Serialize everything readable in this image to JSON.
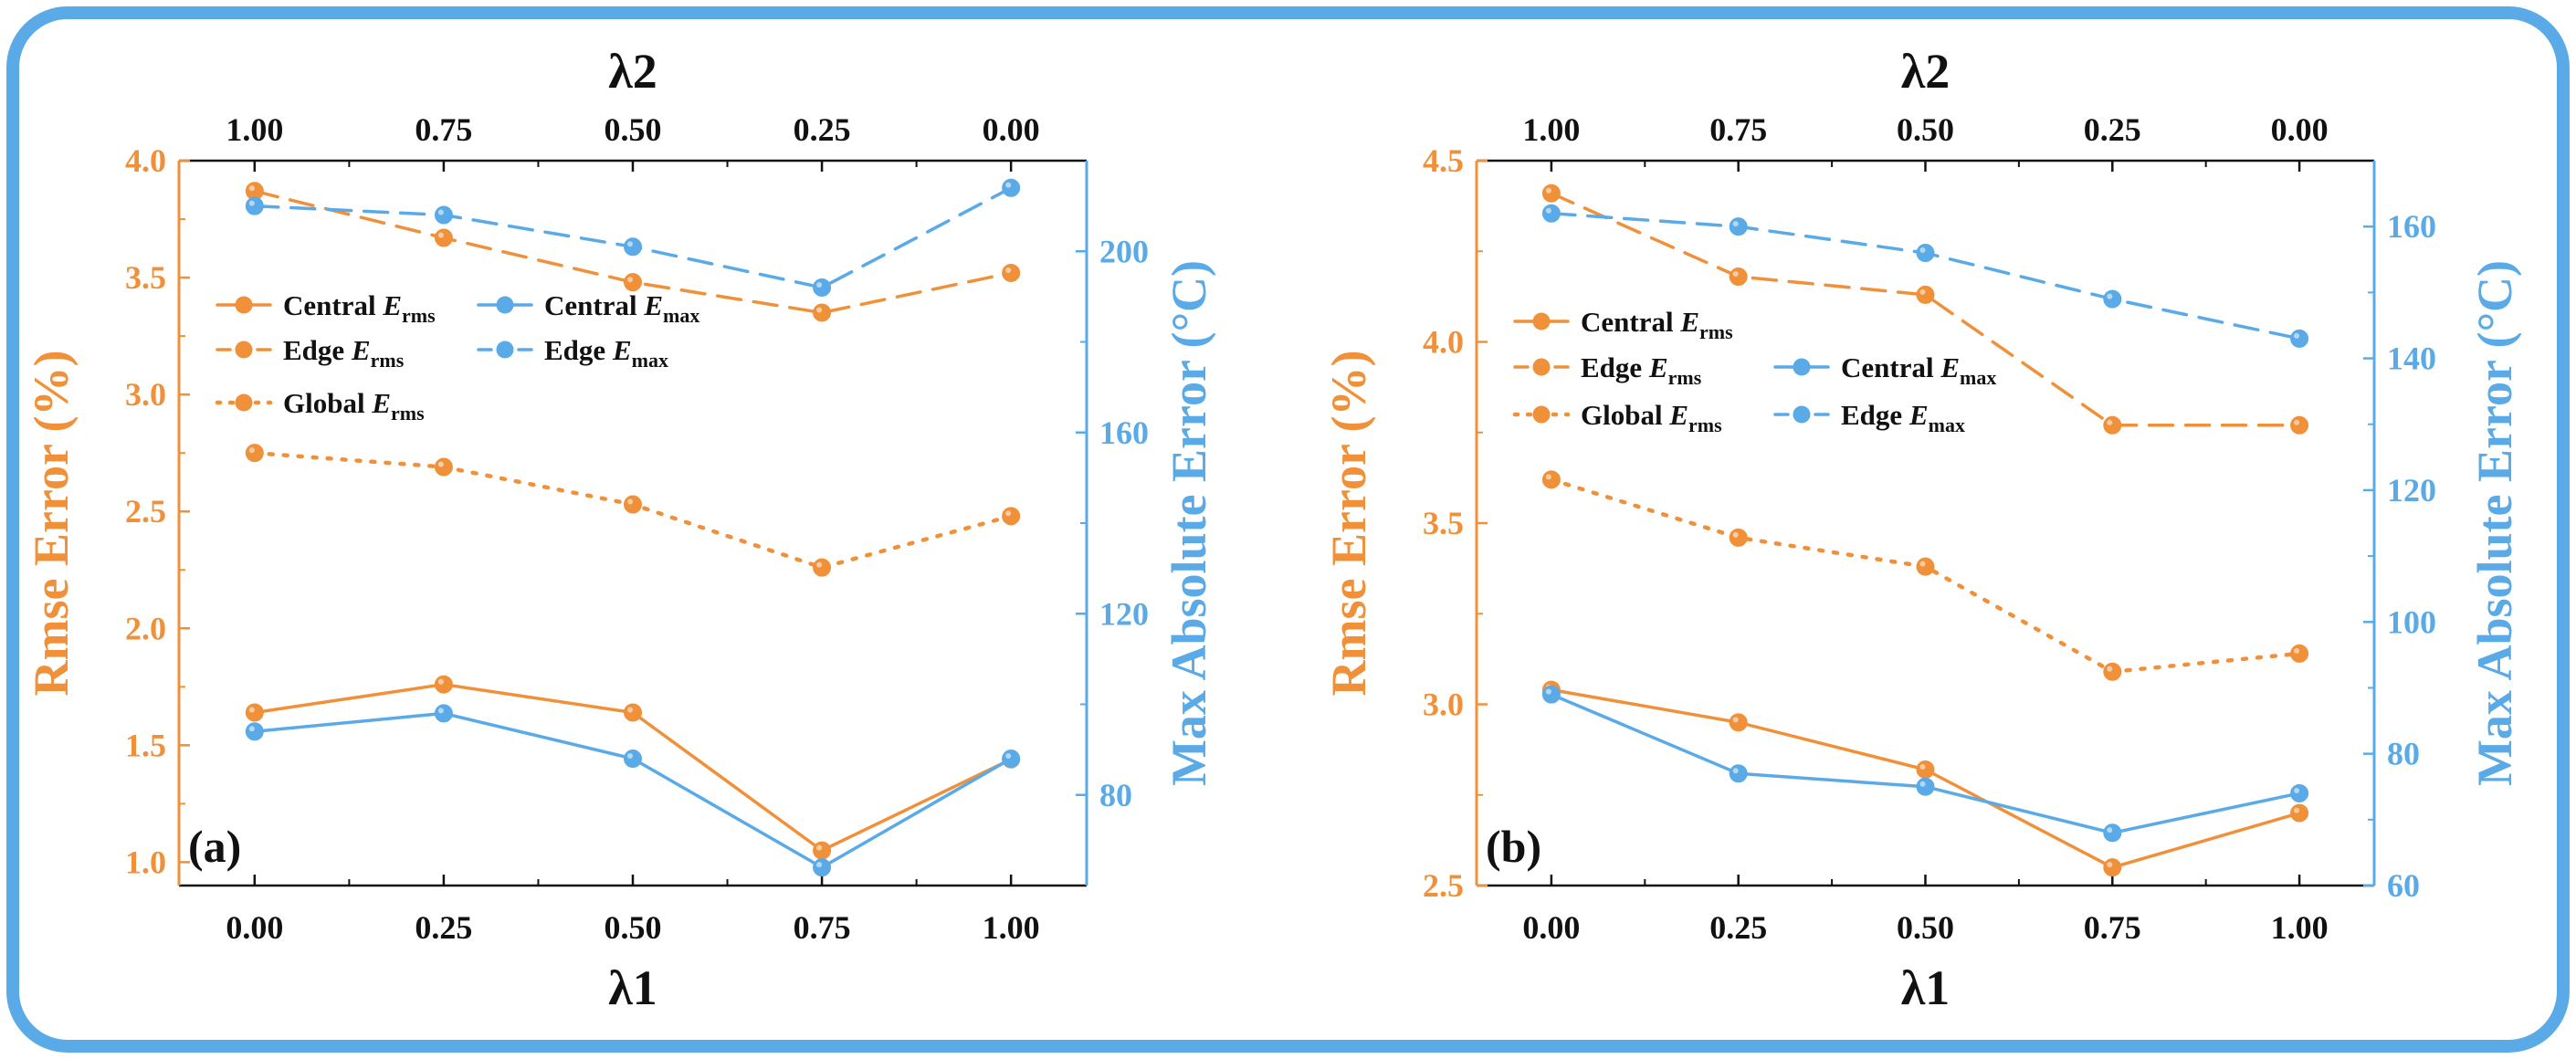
{
  "colors": {
    "orange": "#F0913A",
    "blue": "#5AAAE8",
    "frame": "#5AAAE8",
    "axis_black": "#111111"
  },
  "chart_data": [
    {
      "type": "line",
      "panel_label": "(a)",
      "x": [
        0.0,
        0.25,
        0.5,
        0.75,
        1.0
      ],
      "x_tick_labels": [
        "0.00",
        "0.25",
        "0.50",
        "0.75",
        "1.00"
      ],
      "x_top_tick_labels": [
        "1.00",
        "0.75",
        "0.50",
        "0.25",
        "0.00"
      ],
      "xlabel": "λ1",
      "xlabel_top": "λ2",
      "xlim": [
        -0.1,
        1.1
      ],
      "ylabel_left": "Rmse Error (%)",
      "ylim_left": [
        0.9,
        4.0
      ],
      "yticks_left": [
        1.0,
        1.5,
        2.0,
        2.5,
        3.0,
        3.5,
        4.0
      ],
      "ytick_labels_left": [
        "1.0",
        "1.5",
        "2.0",
        "2.5",
        "3.0",
        "3.5",
        "4.0"
      ],
      "ylabel_right": "Max Absolute Error (°C)",
      "ylim_right": [
        60,
        220
      ],
      "yticks_right": [
        80,
        120,
        160,
        200
      ],
      "ytick_labels_right": [
        "80",
        "120",
        "160",
        "200"
      ],
      "series": [
        {
          "name": "Central E_rms",
          "label_main": "Central ",
          "label_sym": "E",
          "label_sub": "rms",
          "axis": "left",
          "color": "orange",
          "style": "solid",
          "values": [
            1.64,
            1.76,
            1.64,
            1.05,
            1.44
          ]
        },
        {
          "name": "Edge E_rms",
          "label_main": "Edge ",
          "label_sym": "E",
          "label_sub": "rms",
          "axis": "left",
          "color": "orange",
          "style": "dashed",
          "values": [
            3.87,
            3.67,
            3.48,
            3.35,
            3.52
          ]
        },
        {
          "name": "Global E_rms",
          "label_main": "Global ",
          "label_sym": "E",
          "label_sub": "rms",
          "axis": "left",
          "color": "orange",
          "style": "dotted",
          "values": [
            2.75,
            2.69,
            2.53,
            2.26,
            2.48
          ]
        },
        {
          "name": "Central E_max",
          "label_main": "Central ",
          "label_sym": "E",
          "label_sub": "max",
          "axis": "right",
          "color": "blue",
          "style": "solid",
          "values": [
            94,
            98,
            88,
            64,
            88
          ]
        },
        {
          "name": "Edge E_max",
          "label_main": "Edge ",
          "label_sym": "E",
          "label_sub": "max",
          "axis": "right",
          "color": "blue",
          "style": "dashed",
          "values": [
            210,
            208,
            201,
            192,
            214
          ]
        }
      ]
    },
    {
      "type": "line",
      "panel_label": "(b)",
      "x": [
        0.0,
        0.25,
        0.5,
        0.75,
        1.0
      ],
      "x_tick_labels": [
        "0.00",
        "0.25",
        "0.50",
        "0.75",
        "1.00"
      ],
      "x_top_tick_labels": [
        "1.00",
        "0.75",
        "0.50",
        "0.25",
        "0.00"
      ],
      "xlabel": "λ1",
      "xlabel_top": "λ2",
      "xlim": [
        -0.1,
        1.1
      ],
      "ylabel_left": "Rmse Error (%)",
      "ylim_left": [
        2.5,
        4.5
      ],
      "yticks_left": [
        2.5,
        3.0,
        3.5,
        4.0,
        4.5
      ],
      "ytick_labels_left": [
        "2.5",
        "3.0",
        "3.5",
        "4.0",
        "4.5"
      ],
      "ylabel_right": "Max Absolute Error (°C)",
      "ylim_right": [
        60,
        170
      ],
      "yticks_right": [
        60,
        80,
        100,
        120,
        140,
        160
      ],
      "ytick_labels_right": [
        "60",
        "80",
        "100",
        "120",
        "140",
        "160"
      ],
      "series": [
        {
          "name": "Central E_rms",
          "label_main": "Central ",
          "label_sym": "E",
          "label_sub": "rms",
          "axis": "left",
          "color": "orange",
          "style": "solid",
          "values": [
            3.04,
            2.95,
            2.82,
            2.55,
            2.7
          ]
        },
        {
          "name": "Edge E_rms",
          "label_main": "Edge ",
          "label_sym": "E",
          "label_sub": "rms",
          "axis": "left",
          "color": "orange",
          "style": "dashed",
          "values": [
            4.41,
            4.18,
            4.13,
            3.77,
            3.77
          ]
        },
        {
          "name": "Global E_rms",
          "label_main": "Global ",
          "label_sym": "E",
          "label_sub": "rms",
          "axis": "left",
          "color": "orange",
          "style": "dotted",
          "values": [
            3.62,
            3.46,
            3.38,
            3.09,
            3.14
          ]
        },
        {
          "name": "Central E_max",
          "label_main": "Central ",
          "label_sym": "E",
          "label_sub": "max",
          "axis": "right",
          "color": "blue",
          "style": "solid",
          "values": [
            89,
            77,
            75,
            68,
            74
          ]
        },
        {
          "name": "Edge E_max",
          "label_main": "Edge ",
          "label_sym": "E",
          "label_sub": "max",
          "axis": "right",
          "color": "blue",
          "style": "dashed",
          "values": [
            162,
            160,
            156,
            149,
            143
          ]
        }
      ]
    }
  ]
}
